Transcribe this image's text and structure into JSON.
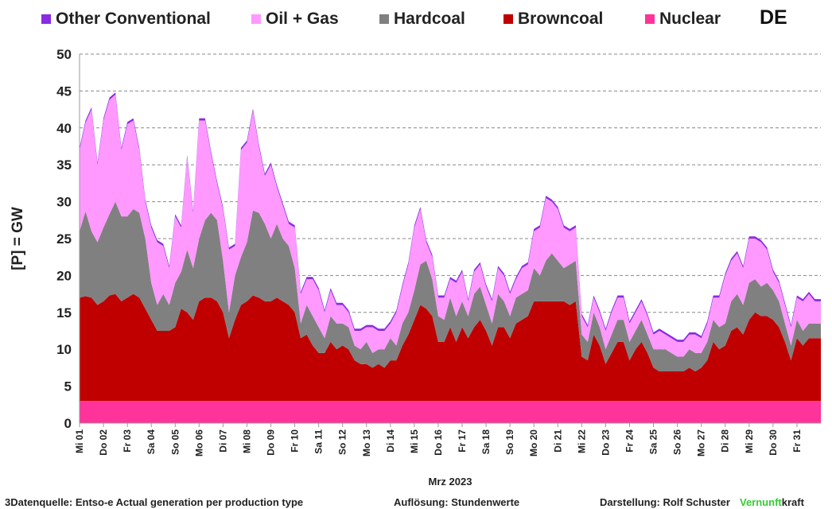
{
  "legend": {
    "items": [
      {
        "label": "Other Conventional",
        "color": "#8a2be2"
      },
      {
        "label": "Oil + Gas",
        "color": "#ff99ff"
      },
      {
        "label": "Hardcoal",
        "color": "#808080"
      },
      {
        "label": "Browncoal",
        "color": "#c00000"
      },
      {
        "label": "Nuclear",
        "color": "#ff3399"
      }
    ],
    "region": "DE"
  },
  "footer": {
    "source": "3Datenquelle: Entso-e  Actual generation per production type",
    "resolution": "Auflösung: Stundenwerte",
    "author": "Darstellung:  Rolf Schuster",
    "brand_green": "Vernunft",
    "brand_rest": "kraft"
  },
  "chart_data": {
    "type": "area",
    "stacked": true,
    "ylabel": "[P] = GW",
    "xlabel": "Mrz 2023",
    "ylim": [
      0,
      50
    ],
    "yticks": [
      0,
      5,
      10,
      15,
      20,
      25,
      30,
      35,
      40,
      45,
      50
    ],
    "grid": true,
    "legend_position": "top",
    "x_tick_labels": [
      "Mi 01",
      "Do 02",
      "Fr 03",
      "Sa 04",
      "So 05",
      "Mo 06",
      "Di 07",
      "Mi 08",
      "Do 09",
      "Fr 10",
      "Sa 11",
      "So 12",
      "Mo 13",
      "Di 14",
      "Mi 15",
      "Do 16",
      "Fr 17",
      "Sa 18",
      "So 19",
      "Mo 20",
      "Di 21",
      "Mi 22",
      "Do 23",
      "Fr 24",
      "Sa 25",
      "So 26",
      "Mo 27",
      "Di 28",
      "Mi 29",
      "Do 30",
      "Fr 31"
    ],
    "x_tick_days": [
      1,
      2,
      3,
      4,
      5,
      6,
      7,
      8,
      9,
      10,
      11,
      12,
      13,
      14,
      15,
      16,
      17,
      18,
      19,
      20,
      21,
      22,
      23,
      24,
      25,
      26,
      27,
      28,
      29,
      30,
      31
    ],
    "x_tick_label_days": [
      1,
      2,
      3,
      4,
      5,
      6,
      7,
      8,
      9,
      10,
      11,
      12,
      13,
      14,
      15,
      16,
      17,
      18,
      19,
      20,
      21,
      22,
      23,
      24,
      25,
      26,
      27,
      28,
      29,
      30,
      31
    ],
    "x_range_days": [
      1,
      32
    ],
    "x_resolution": "6h",
    "x_days": [
      1.0,
      1.25,
      1.5,
      1.75,
      2.0,
      2.25,
      2.5,
      2.75,
      3.0,
      3.25,
      3.5,
      3.75,
      4.0,
      4.25,
      4.5,
      4.75,
      5.0,
      5.25,
      5.5,
      5.75,
      6.0,
      6.25,
      6.5,
      6.75,
      7.0,
      7.25,
      7.5,
      7.75,
      8.0,
      8.25,
      8.5,
      8.75,
      9.0,
      9.25,
      9.5,
      9.75,
      10.0,
      10.25,
      10.5,
      10.75,
      11.0,
      11.25,
      11.5,
      11.75,
      12.0,
      12.25,
      12.5,
      12.75,
      13.0,
      13.25,
      13.5,
      13.75,
      14.0,
      14.25,
      14.5,
      14.75,
      15.0,
      15.25,
      15.5,
      15.75,
      16.0,
      16.25,
      16.5,
      16.75,
      17.0,
      17.25,
      17.5,
      17.75,
      18.0,
      18.25,
      18.5,
      18.75,
      19.0,
      19.25,
      19.5,
      19.75,
      20.0,
      20.25,
      20.5,
      20.75,
      21.0,
      21.25,
      21.5,
      21.75,
      22.0,
      22.25,
      22.5,
      22.75,
      23.0,
      23.25,
      23.5,
      23.75,
      24.0,
      24.25,
      24.5,
      24.75,
      25.0,
      25.25,
      25.5,
      25.75,
      26.0,
      26.25,
      26.5,
      26.75,
      27.0,
      27.25,
      27.5,
      27.75,
      28.0,
      28.25,
      28.5,
      28.75,
      29.0,
      29.25,
      29.5,
      29.75,
      30.0,
      30.25,
      30.5,
      30.75,
      31.0,
      31.25,
      31.5,
      31.75,
      32.0
    ],
    "series": [
      {
        "name": "Nuclear",
        "color": "#ff3399",
        "values": [
          3.0,
          3.0,
          3.0,
          3.0,
          3.0,
          3.0,
          3.0,
          3.0,
          3.0,
          3.0,
          3.0,
          3.0,
          3.0,
          3.0,
          3.0,
          3.0,
          3.0,
          3.0,
          3.0,
          3.0,
          3.0,
          3.0,
          3.0,
          3.0,
          3.0,
          3.0,
          3.0,
          3.0,
          3.0,
          3.0,
          3.0,
          3.0,
          3.0,
          3.0,
          3.0,
          3.0,
          3.0,
          3.0,
          3.0,
          3.0,
          3.0,
          3.0,
          3.0,
          3.0,
          3.0,
          3.0,
          3.0,
          3.0,
          3.0,
          3.0,
          3.0,
          3.0,
          3.0,
          3.0,
          3.0,
          3.0,
          3.0,
          3.0,
          3.0,
          3.0,
          3.0,
          3.0,
          3.0,
          3.0,
          3.0,
          3.0,
          3.0,
          3.0,
          3.0,
          3.0,
          3.0,
          3.0,
          3.0,
          3.0,
          3.0,
          3.0,
          3.0,
          3.0,
          3.0,
          3.0,
          3.0,
          3.0,
          3.0,
          3.0,
          3.0,
          3.0,
          3.0,
          3.0,
          3.0,
          3.0,
          3.0,
          3.0,
          3.0,
          3.0,
          3.0,
          3.0,
          3.0,
          3.0,
          3.0,
          3.0,
          3.0,
          3.0,
          3.0,
          3.0,
          3.0,
          3.0,
          3.0,
          3.0,
          3.0,
          3.0,
          3.0,
          3.0,
          3.0,
          3.0,
          3.0,
          3.0,
          3.0,
          3.0,
          3.0,
          3.0,
          3.0,
          3.0,
          3.0,
          3.0,
          3.0
        ]
      },
      {
        "name": "Browncoal",
        "color": "#c00000",
        "values": [
          14.0,
          14.2,
          14.0,
          13.0,
          13.5,
          14.3,
          14.5,
          13.5,
          14.0,
          14.5,
          14.0,
          12.5,
          11.0,
          9.5,
          9.5,
          9.5,
          10.0,
          12.5,
          12.0,
          11.0,
          13.5,
          14.0,
          14.0,
          13.5,
          12.0,
          8.5,
          11.0,
          13.0,
          13.5,
          14.3,
          14.0,
          13.5,
          13.5,
          14.0,
          13.5,
          13.0,
          12.0,
          8.5,
          9.0,
          7.5,
          6.5,
          6.5,
          8.0,
          7.0,
          7.5,
          7.0,
          5.5,
          5.0,
          5.0,
          4.5,
          5.0,
          4.5,
          5.5,
          5.5,
          7.5,
          9.0,
          11.0,
          13.0,
          12.5,
          11.5,
          8.0,
          8.0,
          10.0,
          8.0,
          10.0,
          8.5,
          10.0,
          11.0,
          9.5,
          7.5,
          10.0,
          10.0,
          8.5,
          10.5,
          11.0,
          11.5,
          13.5,
          13.5,
          13.5,
          13.5,
          13.5,
          13.5,
          13.0,
          13.5,
          6.0,
          5.5,
          9.0,
          7.5,
          5.0,
          6.5,
          8.0,
          8.0,
          5.5,
          7.0,
          8.0,
          6.5,
          4.5,
          4.0,
          4.0,
          4.0,
          4.0,
          4.0,
          4.5,
          4.0,
          4.5,
          5.5,
          8.0,
          7.0,
          7.5,
          9.5,
          10.0,
          9.0,
          11.0,
          12.0,
          11.5,
          11.5,
          11.0,
          10.0,
          8.0,
          5.5,
          8.5,
          7.5,
          8.5,
          8.5,
          8.5
        ]
      },
      {
        "name": "Hardcoal",
        "color": "#808080",
        "values": [
          9.0,
          11.5,
          9.0,
          8.5,
          10.0,
          11.0,
          12.5,
          11.5,
          11.0,
          11.5,
          11.5,
          9.5,
          5.0,
          3.5,
          5.0,
          3.5,
          6.0,
          5.0,
          8.5,
          7.0,
          8.5,
          10.5,
          11.5,
          11.0,
          7.0,
          3.5,
          6.0,
          6.5,
          8.0,
          11.5,
          11.5,
          10.5,
          8.5,
          10.0,
          8.5,
          8.0,
          6.0,
          2.0,
          4.0,
          4.0,
          3.5,
          2.0,
          3.5,
          3.5,
          3.0,
          3.0,
          2.0,
          2.0,
          3.0,
          2.0,
          2.0,
          2.5,
          3.0,
          2.0,
          3.0,
          3.0,
          4.0,
          5.5,
          6.5,
          5.0,
          3.5,
          3.0,
          4.0,
          3.5,
          3.5,
          3.0,
          4.5,
          4.5,
          3.5,
          3.0,
          4.5,
          3.5,
          3.0,
          3.5,
          3.5,
          3.5,
          4.5,
          3.5,
          5.5,
          6.5,
          5.5,
          4.5,
          5.5,
          5.5,
          3.0,
          2.5,
          3.0,
          2.5,
          2.0,
          2.5,
          3.0,
          3.0,
          2.5,
          2.5,
          3.0,
          2.5,
          2.5,
          3.0,
          3.0,
          2.5,
          2.0,
          2.0,
          2.5,
          2.5,
          2.0,
          2.5,
          3.0,
          3.0,
          3.0,
          4.0,
          4.5,
          4.0,
          5.0,
          4.5,
          4.0,
          4.5,
          4.0,
          3.5,
          2.5,
          2.0,
          2.5,
          2.0,
          2.0,
          2.0,
          2.0
        ]
      },
      {
        "name": "Oil + Gas",
        "color": "#ff99ff",
        "values": [
          11.0,
          12.0,
          16.5,
          10.5,
          14.5,
          15.5,
          14.5,
          9.0,
          12.5,
          12.0,
          8.5,
          5.0,
          7.5,
          8.5,
          6.5,
          5.0,
          9.0,
          6.0,
          12.5,
          7.5,
          16.0,
          13.5,
          8.0,
          5.0,
          7.0,
          8.5,
          4.0,
          14.5,
          13.5,
          13.5,
          9.0,
          6.5,
          10.0,
          5.0,
          4.5,
          3.0,
          5.5,
          4.0,
          3.5,
          5.0,
          5.0,
          3.5,
          3.5,
          2.5,
          2.5,
          2.0,
          2.0,
          2.5,
          2.0,
          3.5,
          2.5,
          2.5,
          2.0,
          4.5,
          5.0,
          6.5,
          8.5,
          7.5,
          2.5,
          3.0,
          2.5,
          3.0,
          2.5,
          4.5,
          4.0,
          2.0,
          3.0,
          3.0,
          2.5,
          3.0,
          3.5,
          3.5,
          3.0,
          2.5,
          3.5,
          3.5,
          5.0,
          6.5,
          8.5,
          7.0,
          7.0,
          5.5,
          4.5,
          4.5,
          2.5,
          2.0,
          2.0,
          2.0,
          2.5,
          3.0,
          3.0,
          3.0,
          2.5,
          2.5,
          2.5,
          2.5,
          2.0,
          2.5,
          2.0,
          2.0,
          2.0,
          2.0,
          2.0,
          2.5,
          2.0,
          2.5,
          3.0,
          4.0,
          6.5,
          5.5,
          5.5,
          5.0,
          6.0,
          5.5,
          6.0,
          4.5,
          2.5,
          2.5,
          2.5,
          2.5,
          3.0,
          4.0,
          4.0,
          3.0,
          3.0
        ]
      },
      {
        "name": "Other Conventional",
        "color": "#8a2be2",
        "values": [
          0.3,
          0.3,
          0.3,
          0.3,
          0.3,
          0.3,
          0.3,
          0.3,
          0.3,
          0.3,
          0.3,
          0.3,
          0.3,
          0.3,
          0.3,
          0.3,
          0.3,
          0.3,
          0.3,
          0.3,
          0.3,
          0.3,
          0.3,
          0.3,
          0.3,
          0.3,
          0.3,
          0.3,
          0.3,
          0.3,
          0.3,
          0.3,
          0.3,
          0.3,
          0.3,
          0.3,
          0.3,
          0.3,
          0.3,
          0.3,
          0.3,
          0.3,
          0.3,
          0.3,
          0.3,
          0.3,
          0.3,
          0.3,
          0.3,
          0.3,
          0.3,
          0.3,
          0.3,
          0.3,
          0.3,
          0.3,
          0.3,
          0.3,
          0.3,
          0.3,
          0.3,
          0.3,
          0.3,
          0.3,
          0.3,
          0.3,
          0.3,
          0.3,
          0.3,
          0.3,
          0.3,
          0.3,
          0.3,
          0.3,
          0.3,
          0.3,
          0.3,
          0.3,
          0.3,
          0.3,
          0.3,
          0.3,
          0.3,
          0.3,
          0.3,
          0.3,
          0.3,
          0.3,
          0.3,
          0.3,
          0.3,
          0.3,
          0.3,
          0.3,
          0.3,
          0.3,
          0.3,
          0.3,
          0.3,
          0.3,
          0.3,
          0.3,
          0.3,
          0.3,
          0.3,
          0.3,
          0.3,
          0.3,
          0.3,
          0.3,
          0.3,
          0.3,
          0.3,
          0.3,
          0.3,
          0.3,
          0.3,
          0.3,
          0.3,
          0.3,
          0.3,
          0.3,
          0.3,
          0.3,
          0.3
        ]
      }
    ]
  }
}
